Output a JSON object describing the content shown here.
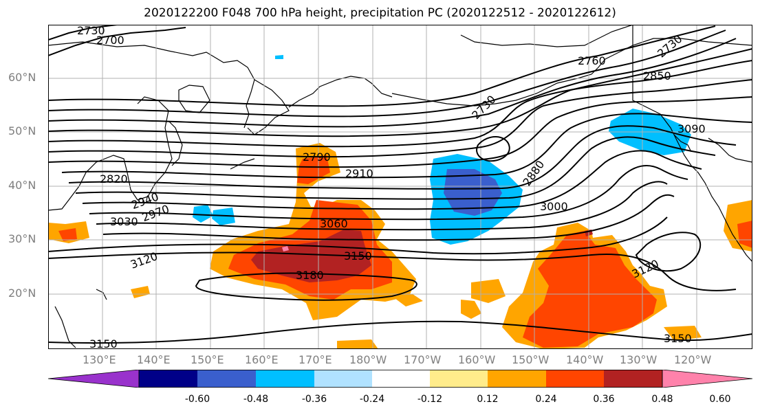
{
  "title": "2020122200 F048 700 hPa height, precipitation PC (2020122512 - 2020122612)",
  "lat_labels": [
    "60°N",
    "50°N",
    "40°N",
    "30°N",
    "20°N"
  ],
  "lon_labels": [
    "130°E",
    "140°E",
    "150°E",
    "160°E",
    "170°E",
    "180°W",
    "170°W",
    "160°W",
    "150°W",
    "140°W",
    "130°W",
    "120°W"
  ],
  "contour_labels": [
    "2730",
    "2700",
    "2760",
    "2730",
    "2850",
    "2790",
    "2910",
    "2880",
    "3090",
    "2820",
    "2940",
    "2970",
    "3000",
    "3030",
    "3060",
    "3120",
    "3150",
    "3180",
    "3120",
    "3150",
    "3150",
    "2730"
  ],
  "colorbar": {
    "labels": [
      "-0.60",
      "-0.48",
      "-0.36",
      "-0.24",
      "-0.12",
      "0.12",
      "0.24",
      "0.36",
      "0.48",
      "0.60"
    ],
    "colors": [
      "#9932cc",
      "#000088",
      "#3a5fcd",
      "#00bfff",
      "#b0e2ff",
      "#ffffff",
      "#ffec8b",
      "#ffa500",
      "#ff4500",
      "#b22222",
      "#ff82ab"
    ]
  }
}
